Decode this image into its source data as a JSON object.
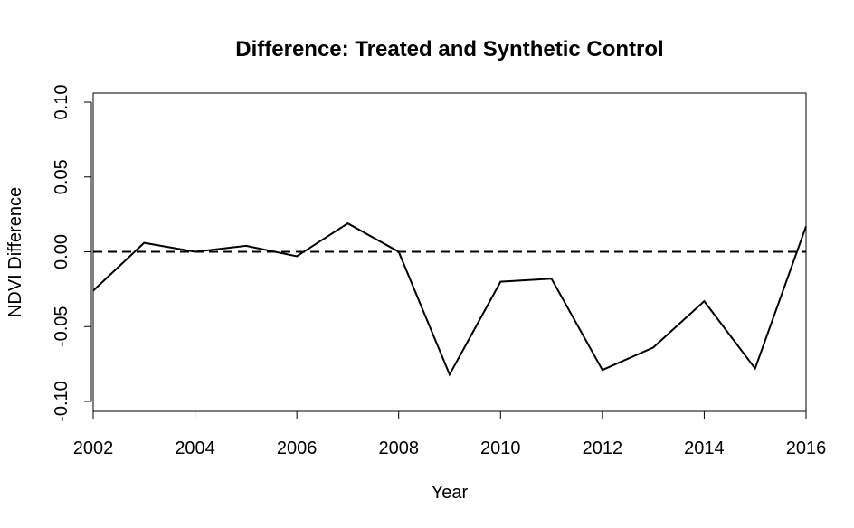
{
  "chart_data": {
    "type": "line",
    "title": "Difference: Treated and Synthetic Control",
    "xlabel": "Year",
    "ylabel": "NDVI Difference",
    "xlim": [
      2002,
      2016
    ],
    "ylim": [
      -0.1,
      0.1
    ],
    "x_ticks": [
      2002,
      2004,
      2006,
      2008,
      2010,
      2012,
      2014,
      2016
    ],
    "y_ticks": [
      -0.1,
      -0.05,
      0.0,
      0.05,
      0.1
    ],
    "y_tick_labels": [
      "-0.10",
      "-0.05",
      "0.00",
      "0.05",
      "0.10"
    ],
    "x_tick_labels": [
      "2002",
      "2004",
      "2006",
      "2008",
      "2010",
      "2012",
      "2014",
      "2016"
    ],
    "grid": false,
    "reference_line": {
      "y": 0.0,
      "style": "dashed"
    },
    "series": [
      {
        "x": [
          2002,
          2003,
          2004,
          2005,
          2006,
          2007,
          2008,
          2009,
          2010,
          2011,
          2012,
          2013,
          2014,
          2015,
          2016
        ],
        "values": [
          -0.026,
          0.006,
          0.0,
          0.004,
          -0.003,
          0.019,
          0.0,
          -0.082,
          -0.02,
          -0.018,
          -0.079,
          -0.064,
          -0.033,
          -0.078,
          0.017
        ],
        "color": "#000000"
      }
    ]
  }
}
